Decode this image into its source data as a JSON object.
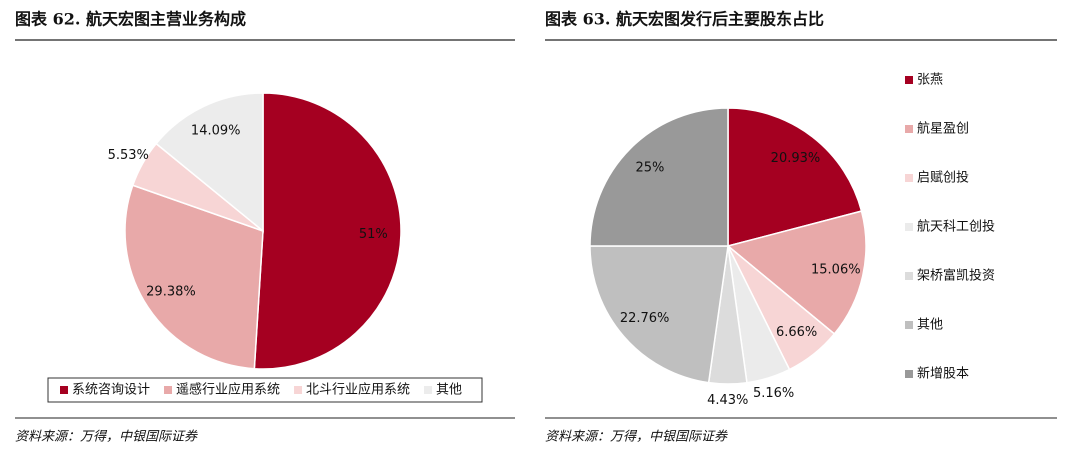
{
  "chart_data": [
    {
      "type": "pie",
      "title": "图表 62. 航天宏图主营业务构成",
      "categories": [
        "系统咨询设计",
        "遥感行业应用系统",
        "北斗行业应用系统",
        "其他"
      ],
      "values": [
        51,
        29.38,
        5.53,
        14.09
      ],
      "value_labels": [
        "51%",
        "29.38%",
        "5.53%",
        "14.09%"
      ],
      "colors": [
        "#a50021",
        "#e8a9a9",
        "#f7d5d5",
        "#ececec"
      ],
      "legend": "bottom",
      "source": "资料来源：万得，中银国际证券"
    },
    {
      "type": "pie",
      "title": "图表 63. 航天宏图发行后主要股东占比",
      "categories": [
        "张燕",
        "航星盈创",
        "启赋创投",
        "航天科工创投",
        "架桥富凯投资",
        "其他",
        "新增股本"
      ],
      "values": [
        20.93,
        15.06,
        6.66,
        5.16,
        4.43,
        22.76,
        25
      ],
      "value_labels": [
        "20.93%",
        "15.06%",
        "6.66%",
        "5.16%",
        "4.43%",
        "22.76%",
        "25%"
      ],
      "colors": [
        "#a50021",
        "#e8a9a9",
        "#f7d5d5",
        "#ebebeb",
        "#dcdcdc",
        "#bfbfbf",
        "#999999"
      ],
      "legend": "right",
      "source": "资料来源：万得，中银国际证券"
    }
  ]
}
